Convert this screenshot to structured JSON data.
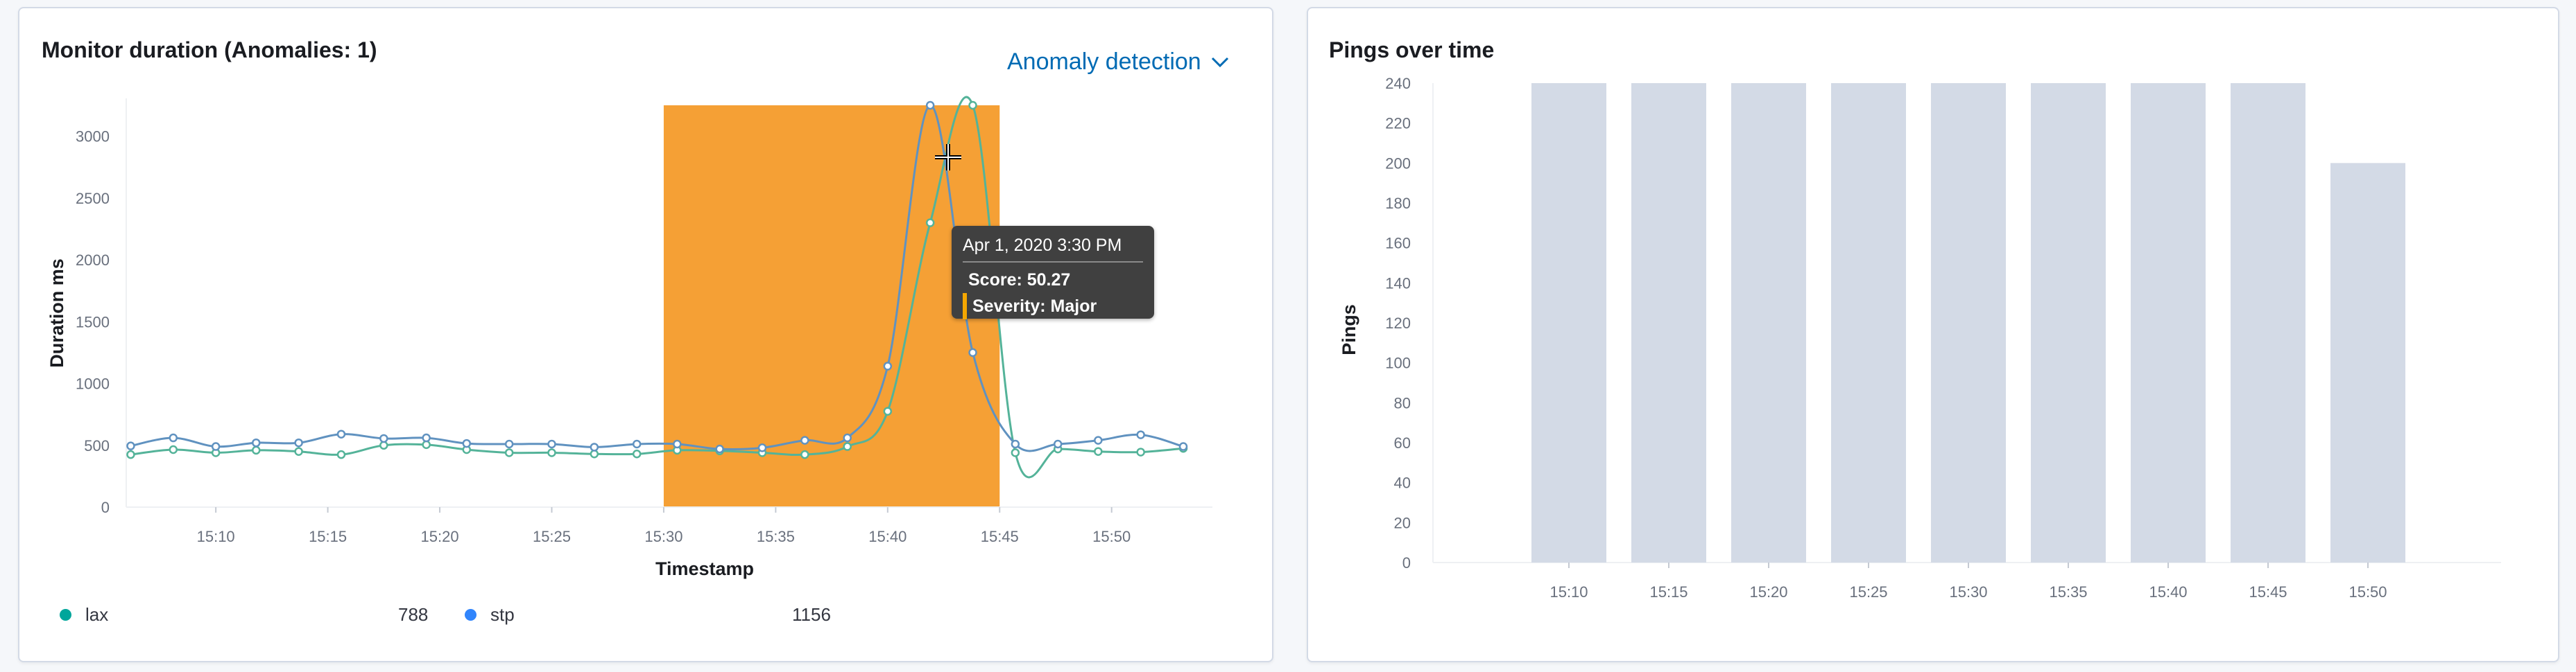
{
  "left_panel": {
    "title": "Monitor duration (Anomalies: 1)",
    "dropdown_label": "Anomaly detection",
    "tooltip": {
      "time": "Apr 1, 2020 3:30 PM",
      "score": "Score: 50.27",
      "severity": "Severity: Major"
    },
    "legend": [
      {
        "name": "lax",
        "value": "788",
        "color": "#00a69b"
      },
      {
        "name": "stp",
        "value": "1156",
        "color": "#3185fc"
      }
    ]
  },
  "right_panel": {
    "title": "Pings over time"
  },
  "colors": {
    "lax": "#54b399",
    "stp": "#6092c0",
    "anomaly": "#f5a035",
    "bars": "#d3dae6"
  },
  "chart_data": [
    {
      "type": "line",
      "title": "Monitor duration (Anomalies: 1)",
      "xlabel": "Timestamp",
      "ylabel": "Duration ms",
      "x_tick_labels": [
        "15:10",
        "15:15",
        "15:20",
        "15:25",
        "15:30",
        "15:35",
        "15:40",
        "15:45",
        "15:50"
      ],
      "x_ticks_min": [
        10,
        15,
        20,
        25,
        30,
        35,
        40,
        45,
        50
      ],
      "xlim_min": [
        6,
        54.5
      ],
      "y_ticks": [
        0,
        500,
        1000,
        1500,
        2000,
        2500,
        3000
      ],
      "ylim": [
        0,
        3250
      ],
      "anomaly_band_min": [
        30,
        45
      ],
      "series": [
        {
          "name": "lax",
          "x_min": [
            6.2,
            8.1,
            10.0,
            11.8,
            13.7,
            15.6,
            17.5,
            19.4,
            21.2,
            23.1,
            25.0,
            26.9,
            28.8,
            30.6,
            32.5,
            34.4,
            36.3,
            38.2,
            40.0,
            41.9,
            43.8,
            45.7,
            47.6,
            49.4,
            51.3,
            53.2
          ],
          "y": [
            425,
            465,
            440,
            460,
            450,
            425,
            500,
            505,
            465,
            440,
            440,
            430,
            430,
            460,
            455,
            440,
            425,
            490,
            775,
            2300,
            3250,
            440,
            470,
            450,
            445,
            475
          ]
        },
        {
          "name": "stp",
          "x_min": [
            6.2,
            8.1,
            10.0,
            11.8,
            13.7,
            15.6,
            17.5,
            19.4,
            21.2,
            23.1,
            25.0,
            26.9,
            28.8,
            30.6,
            32.5,
            34.4,
            36.3,
            38.2,
            40.0,
            41.9,
            43.8,
            45.7,
            47.6,
            49.4,
            51.3,
            53.2
          ],
          "y": [
            495,
            560,
            490,
            520,
            520,
            590,
            555,
            560,
            515,
            510,
            510,
            485,
            510,
            510,
            470,
            480,
            540,
            560,
            1140,
            3250,
            1250,
            510,
            510,
            540,
            585,
            490
          ]
        }
      ]
    },
    {
      "type": "bar",
      "title": "Pings over time",
      "ylabel": "Pings",
      "categories": [
        "15:10",
        "15:15",
        "15:20",
        "15:25",
        "15:30",
        "15:35",
        "15:40",
        "15:45",
        "15:50"
      ],
      "values": [
        240,
        240,
        240,
        240,
        240,
        240,
        240,
        240,
        200
      ],
      "y_ticks": [
        0,
        20,
        40,
        60,
        80,
        100,
        120,
        140,
        160,
        180,
        200,
        220,
        240
      ],
      "ylim": [
        0,
        240
      ]
    }
  ]
}
